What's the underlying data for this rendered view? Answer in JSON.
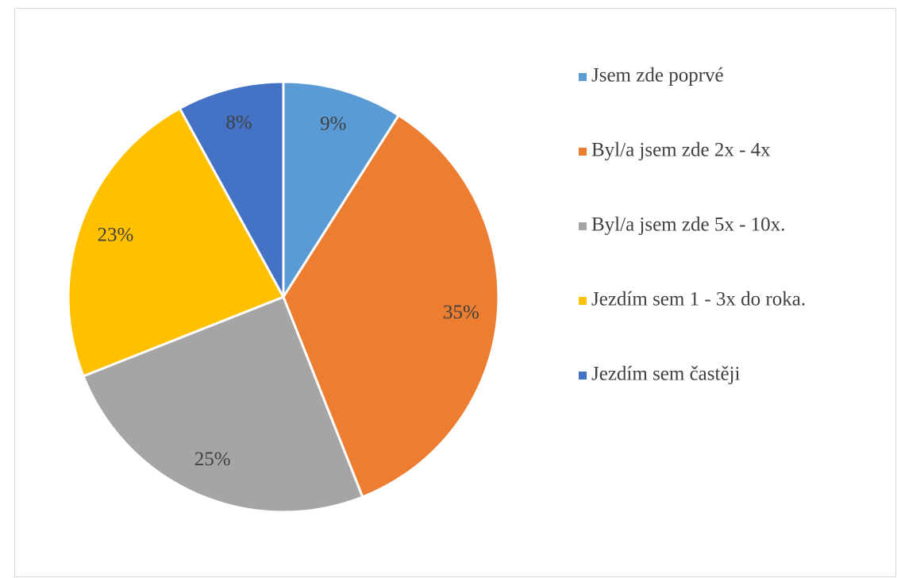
{
  "chart_data": {
    "type": "pie",
    "categories": [
      "Jsem zde poprvé",
      "Byl/a jsem zde 2x - 4x",
      "Byl/a jsem zde 5x - 10x.",
      "Jezdím sem 1 - 3x do roka.",
      "Jezdím sem častěji"
    ],
    "values": [
      9,
      35,
      25,
      23,
      8
    ],
    "value_labels": [
      "9%",
      "35%",
      "25%",
      "23%",
      "8%"
    ],
    "colors": [
      "#5b9bd5",
      "#ed7d31",
      "#a5a5a5",
      "#ffc000",
      "#4472c4"
    ],
    "legend": "right"
  }
}
